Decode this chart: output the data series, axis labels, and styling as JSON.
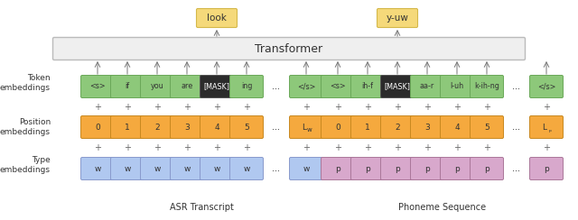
{
  "bg_color": "#ffffff",
  "transformer_label": "Transformer",
  "transformer_color": "#efefef",
  "transformer_edge": "#bbbbbb",
  "output_labels": [
    "look",
    "y-uw"
  ],
  "output_color": "#f5d97a",
  "output_edge": "#d4b84a",
  "asr_tokens": [
    "<s>",
    "if",
    "you",
    "are",
    "[MASK]",
    "ing",
    "...",
    "</s>"
  ],
  "asr_tok_bg": [
    "#8dc87a",
    "#8dc87a",
    "#8dc87a",
    "#8dc87a",
    "#2b2b2b",
    "#8dc87a",
    null,
    "#8dc87a"
  ],
  "asr_tok_fg": [
    "#333333",
    "#333333",
    "#333333",
    "#333333",
    "#ffffff",
    "#333333",
    "#555555",
    "#333333"
  ],
  "asr_pos": [
    "0",
    "1",
    "2",
    "3",
    "4",
    "5",
    "...",
    "Lᴡ"
  ],
  "phoneme_tokens": [
    "<s>",
    "ih-f",
    "[MASK]",
    "aa-r",
    "l-uh",
    "k-ih-ng",
    "...",
    "</s>"
  ],
  "phoneme_tok_bg": [
    "#8dc87a",
    "#8dc87a",
    "#2b2b2b",
    "#8dc87a",
    "#8dc87a",
    "#8dc87a",
    null,
    "#8dc87a"
  ],
  "phoneme_tok_fg": [
    "#333333",
    "#333333",
    "#ffffff",
    "#333333",
    "#333333",
    "#333333",
    "#555555",
    "#333333"
  ],
  "phoneme_pos": [
    "0",
    "1",
    "2",
    "3",
    "4",
    "5",
    "...",
    "Lₚ"
  ],
  "green": "#8dc87a",
  "orange": "#f5a93e",
  "blue": "#b0c8f0",
  "pink": "#d8a8cc",
  "green_edge": "#6aa858",
  "orange_edge": "#c88820",
  "blue_edge": "#8899cc",
  "pink_edge": "#aa7799",
  "dark_edge": "#555555",
  "fig_w": 6.4,
  "fig_h": 2.44,
  "dpi": 100
}
